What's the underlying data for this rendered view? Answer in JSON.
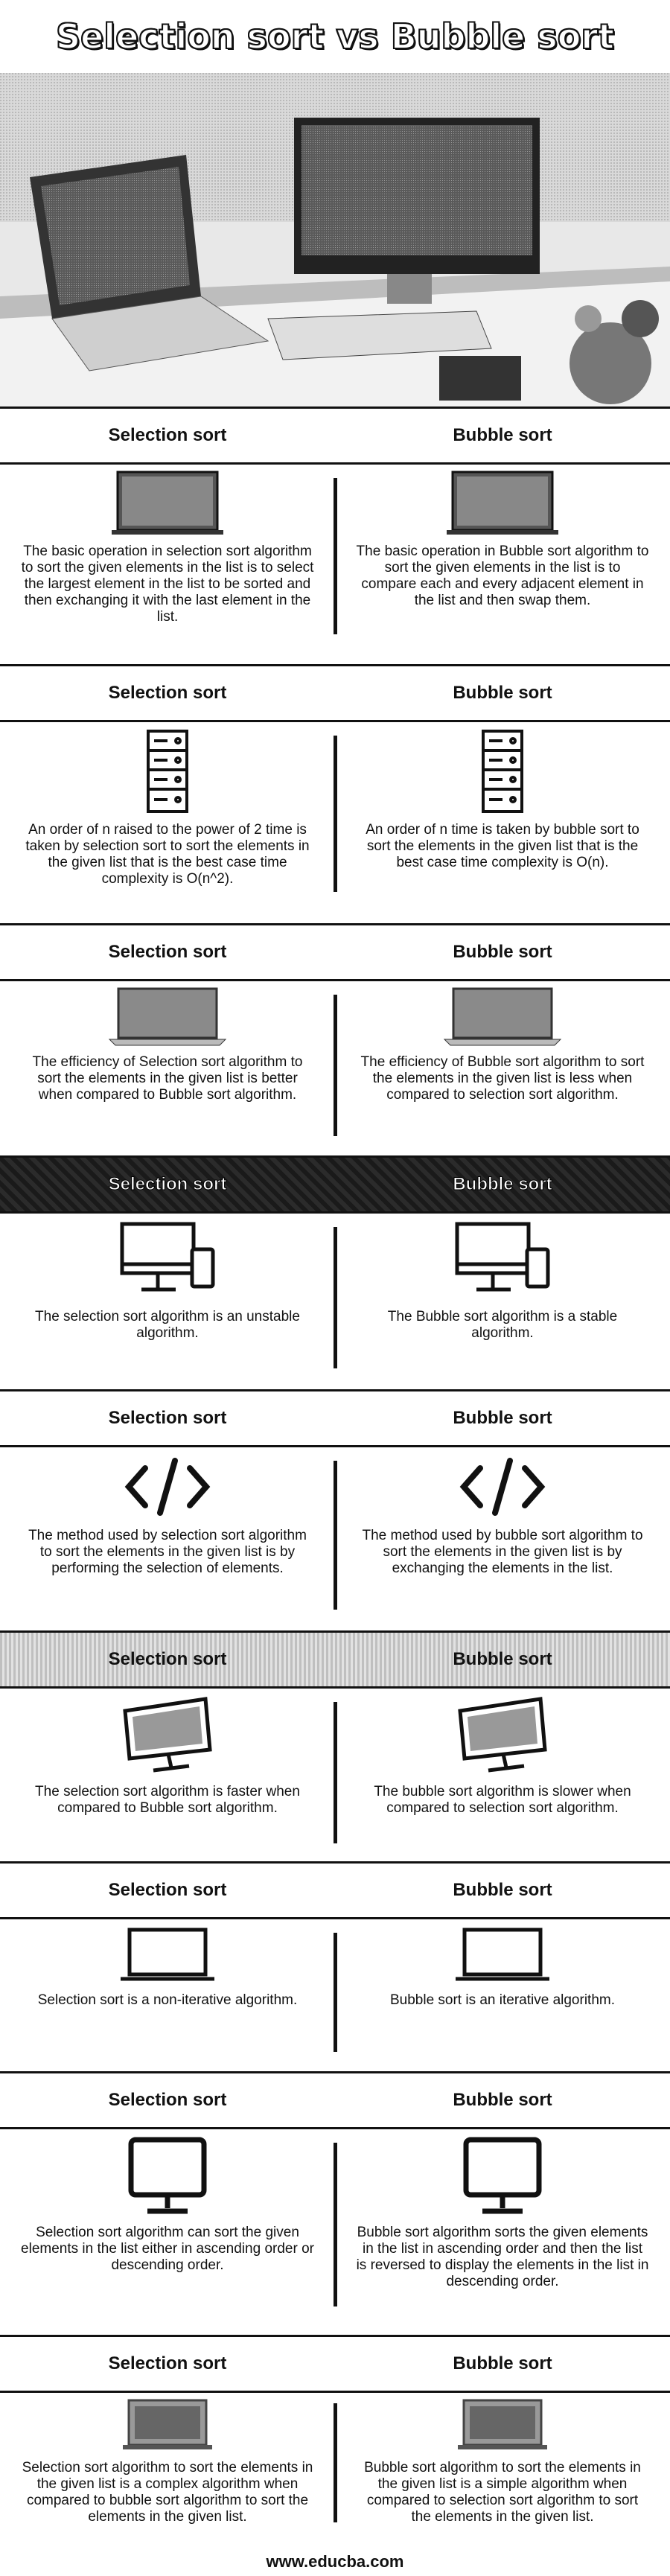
{
  "title": "Selection sort vs Bubble sort",
  "headers": {
    "left": "Selection sort",
    "right": "Bubble sort"
  },
  "rows": [
    {
      "icon": "laptop-icon",
      "left": "The basic operation in selection sort algorithm to sort the given elements in the list is to select the largest element in the list to be sorted and then exchanging it with the last element in the list.",
      "right": "The basic operation in Bubble sort algorithm to sort the given elements in the list is to compare each and every adjacent element in the list and then swap them."
    },
    {
      "icon": "server-icon",
      "left": "An order of n raised to the power of 2 time is taken by selection sort to sort the elements in the given list that is the best case time complexity is O(n^2).",
      "right": "An order of n time is taken by bubble sort to sort the elements in the given list that is the best case time complexity is O(n)."
    },
    {
      "icon": "notebook-icon",
      "left": "The efficiency of Selection sort algorithm to sort the elements in the given list is better when compared to Bubble sort algorithm.",
      "right": "The efficiency of Bubble sort algorithm to sort the elements in the given list is less when compared to selection sort algorithm."
    },
    {
      "icon": "desktop-phone-icon",
      "left": "The selection sort algorithm is an unstable algorithm.",
      "right": "The Bubble sort algorithm is a stable algorithm."
    },
    {
      "icon": "code-icon",
      "left": "The method used by selection sort algorithm to sort the elements in the given list is by performing the selection of elements.",
      "right": "The method used by bubble sort algorithm to sort the elements in the given list is by exchanging the elements in the list."
    },
    {
      "icon": "monitor-tilted-icon",
      "left": "The selection sort algorithm is faster when compared to Bubble sort algorithm.",
      "right": "The bubble sort algorithm is slower when compared to selection sort algorithm."
    },
    {
      "icon": "small-laptop-icon",
      "left": "Selection sort is a non-iterative algorithm.",
      "right": "Bubble sort is an iterative algorithm."
    },
    {
      "icon": "monitor-icon",
      "left": "Selection sort algorithm can sort the given elements in the list either in ascending order or descending order.",
      "right": "Bubble sort algorithm sorts the given elements in the list in ascending order and then the list is reversed to display the elements in the list in descending order."
    },
    {
      "icon": "laptop-screen-icon",
      "left": "Selection sort algorithm to sort the elements in the given list is a complex algorithm when compared to bubble sort algorithm to sort the elements in the given list.",
      "right": "Bubble sort algorithm to sort the elements in the given list is a simple algorithm when compared to selection sort algorithm to sort the elements in the given list."
    }
  ],
  "footer": "www.educba.com"
}
